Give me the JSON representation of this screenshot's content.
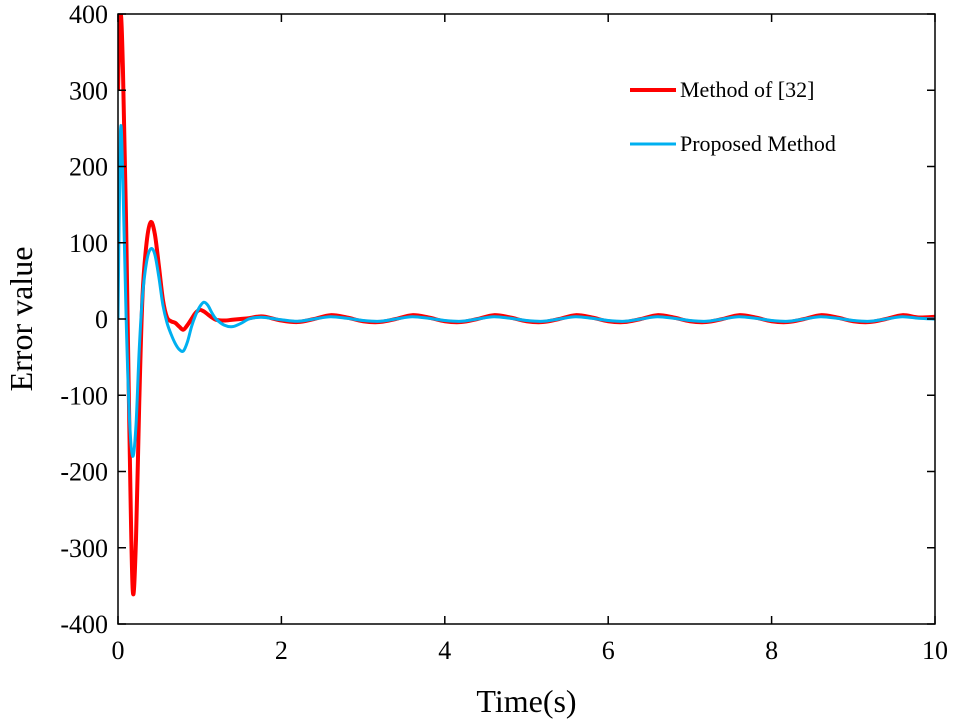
{
  "chart_data": {
    "type": "line",
    "title": "",
    "xlabel": "Time(s)",
    "ylabel": "Error value",
    "xlim": [
      0,
      10
    ],
    "ylim": [
      -400,
      400
    ],
    "xticks": [
      0,
      2,
      4,
      6,
      8,
      10
    ],
    "yticks": [
      -400,
      -300,
      -200,
      -100,
      0,
      100,
      200,
      300,
      400
    ],
    "grid": false,
    "legend_position": "top-right",
    "series": [
      {
        "name": "Method of [32]",
        "color": "#ff0000",
        "x": [
          0,
          0.03,
          0.06,
          0.1,
          0.14,
          0.18,
          0.22,
          0.26,
          0.3,
          0.35,
          0.4,
          0.45,
          0.5,
          0.55,
          0.6,
          0.65,
          0.7,
          0.75,
          0.8,
          0.85,
          0.9,
          0.95,
          1.0,
          1.05,
          1.1,
          1.15,
          1.2,
          1.3,
          1.4,
          1.5,
          1.6,
          1.7,
          1.8,
          2.0,
          2.2,
          2.4,
          2.6,
          2.8,
          3.0,
          3.2,
          3.4,
          3.6,
          3.8,
          4.0,
          4.2,
          4.4,
          4.6,
          4.8,
          5.0,
          5.2,
          5.4,
          5.6,
          5.8,
          6.0,
          6.2,
          6.4,
          6.6,
          6.8,
          7.0,
          7.2,
          7.4,
          7.6,
          7.8,
          8.0,
          8.2,
          8.4,
          8.6,
          8.8,
          9.0,
          9.2,
          9.4,
          9.6,
          9.8,
          10.0
        ],
        "y": [
          300,
          400,
          330,
          120,
          -150,
          -355,
          -290,
          -110,
          30,
          100,
          127,
          112,
          70,
          25,
          2,
          -3,
          -5,
          -10,
          -14,
          -8,
          0,
          8,
          12,
          10,
          6,
          2,
          -1,
          -2,
          -1,
          0,
          1,
          3,
          3,
          -2,
          -4,
          0,
          5,
          2,
          -3,
          -4,
          0,
          5,
          2,
          -3,
          -4,
          0,
          5,
          2,
          -3,
          -4,
          0,
          5,
          2,
          -3,
          -4,
          0,
          5,
          2,
          -3,
          -4,
          0,
          5,
          2,
          -3,
          -4,
          0,
          5,
          2,
          -3,
          -4,
          0,
          5,
          2,
          3
        ]
      },
      {
        "name": "Proposed Method",
        "color": "#00b0f0",
        "x": [
          0,
          0.03,
          0.06,
          0.1,
          0.14,
          0.18,
          0.22,
          0.26,
          0.3,
          0.35,
          0.4,
          0.45,
          0.5,
          0.55,
          0.6,
          0.65,
          0.7,
          0.75,
          0.8,
          0.85,
          0.9,
          0.95,
          1.0,
          1.05,
          1.1,
          1.15,
          1.2,
          1.3,
          1.4,
          1.5,
          1.6,
          1.7,
          1.8,
          2.0,
          2.2,
          2.4,
          2.6,
          2.8,
          3.0,
          3.2,
          3.4,
          3.6,
          3.8,
          4.0,
          4.2,
          4.4,
          4.6,
          4.8,
          5.0,
          5.2,
          5.4,
          5.6,
          5.8,
          6.0,
          6.2,
          6.4,
          6.6,
          6.8,
          7.0,
          7.2,
          7.4,
          7.6,
          7.8,
          8.0,
          8.2,
          8.4,
          8.6,
          8.8,
          9.0,
          9.2,
          9.4,
          9.6,
          9.8,
          10.0
        ],
        "y": [
          0,
          245,
          180,
          0,
          -130,
          -180,
          -140,
          -40,
          30,
          75,
          92,
          85,
          55,
          18,
          -5,
          -20,
          -32,
          -40,
          -42,
          -30,
          -10,
          5,
          16,
          22,
          18,
          8,
          0,
          -8,
          -10,
          -6,
          0,
          2,
          2,
          -1,
          -3,
          0,
          3,
          1,
          -2,
          -3,
          0,
          3,
          1,
          -2,
          -3,
          0,
          3,
          1,
          -2,
          -3,
          0,
          3,
          1,
          -2,
          -3,
          0,
          3,
          1,
          -2,
          -3,
          0,
          3,
          1,
          -2,
          -3,
          0,
          3,
          1,
          -2,
          -3,
          0,
          3,
          1,
          0
        ]
      }
    ]
  }
}
